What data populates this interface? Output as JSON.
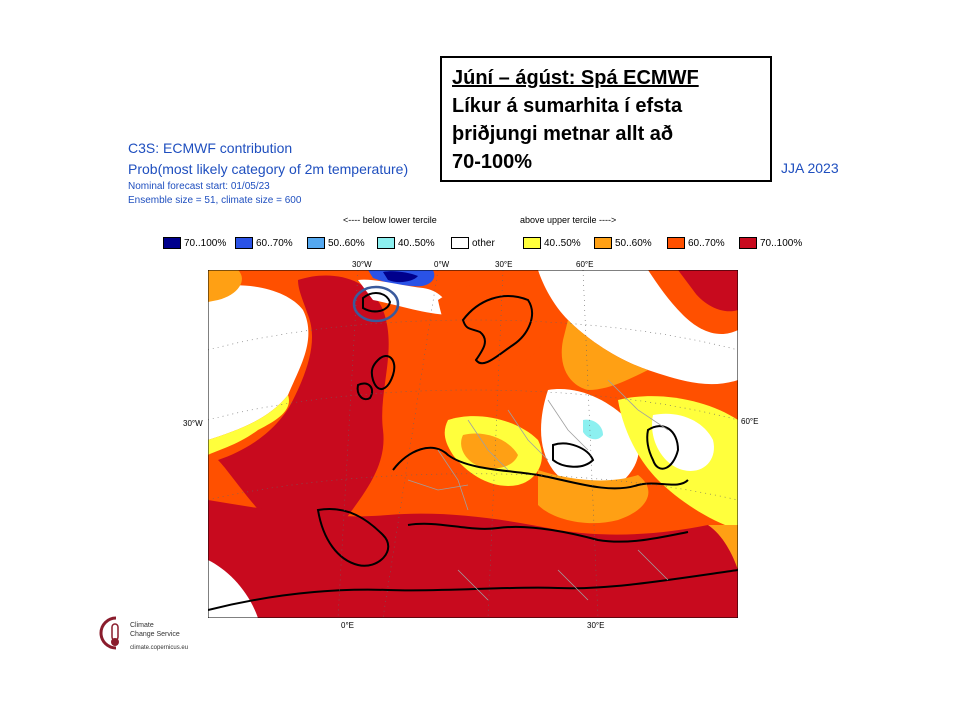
{
  "callout": {
    "line1": "Júní – ágúst:  Spá ECMWF",
    "line2": "Líkur á sumarhita í efsta",
    "line3": "þriðjungi  metnar allt að",
    "line4": "70-100%"
  },
  "header": {
    "title": "C3S: ECMWF contribution",
    "subtitle": "Prob(most likely category of 2m temperature)",
    "forecast_start": "Nominal forecast start: 01/05/23",
    "ensemble": "Ensemble size = 51, climate size = 600",
    "season": "JJA 2023"
  },
  "legend": {
    "below_label": "<---- below lower tercile",
    "above_label": "above upper tercile ---->",
    "items": [
      {
        "label": "70..100%",
        "color": "#00008c"
      },
      {
        "label": "60..70%",
        "color": "#2a52e6"
      },
      {
        "label": "50..60%",
        "color": "#54a8f0"
      },
      {
        "label": "40..50%",
        "color": "#8cf0f0"
      },
      {
        "label": "other",
        "color": "#ffffff"
      },
      {
        "label": "40..50%",
        "color": "#ffff3c"
      },
      {
        "label": "50..60%",
        "color": "#ffa014"
      },
      {
        "label": "60..70%",
        "color": "#ff5000"
      },
      {
        "label": "70..100%",
        "color": "#c80a1e"
      }
    ]
  },
  "axes": {
    "top_labels": [
      "30°W",
      "0°W",
      "30°E",
      "60°E"
    ],
    "left_label": "30°W",
    "right_label": "60°E",
    "bottom_labels": [
      "0°E",
      "30°E"
    ]
  },
  "logo": {
    "name_line1": "Climate",
    "name_line2": "Change Service",
    "url": "climate.copernicus.eu"
  }
}
